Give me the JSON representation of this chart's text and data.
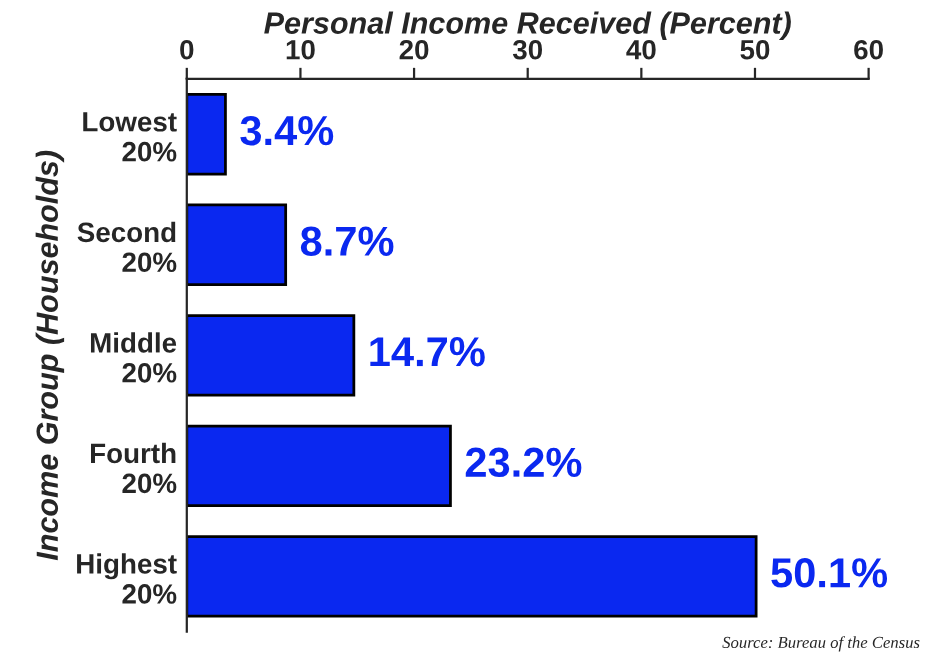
{
  "chart_data": {
    "type": "bar",
    "orientation": "horizontal",
    "xlabel": "Personal Income Received (Percent)",
    "ylabel": "Income Group (Households)",
    "categories": [
      "Lowest\n20%",
      "Second\n20%",
      "Middle\n20%",
      "Fourth\n20%",
      "Highest\n20%"
    ],
    "values": [
      3.4,
      8.7,
      14.7,
      23.2,
      50.1
    ],
    "value_labels": [
      "3.4%",
      "8.7%",
      "14.7%",
      "23.2%",
      "50.1%"
    ],
    "color": "#0a28f0",
    "xlim": [
      0,
      60
    ],
    "xticks": [
      0,
      10,
      20,
      30,
      40,
      50,
      60
    ],
    "grid": false,
    "legend": false,
    "annotations": [
      "Source: Bureau of the Census"
    ]
  }
}
